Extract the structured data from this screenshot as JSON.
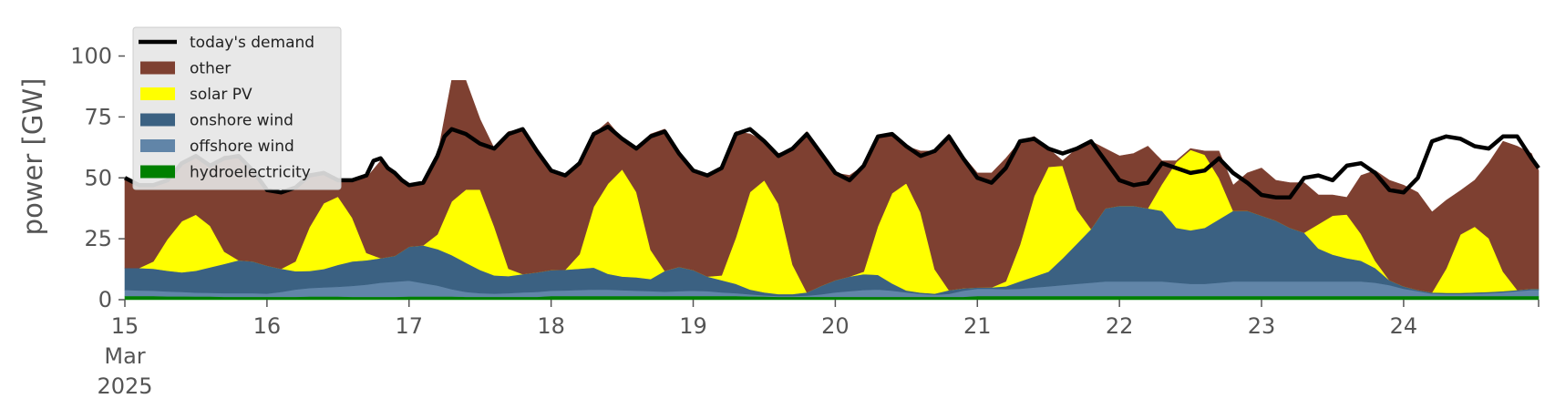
{
  "chart_data": {
    "type": "area",
    "title": "",
    "ylabel": "power [GW]",
    "xlabel": "",
    "ylim": [
      0,
      120
    ],
    "yticks": [
      0,
      25,
      50,
      75,
      100
    ],
    "xlim": [
      15,
      24.95
    ],
    "xticks": [
      {
        "value": 15,
        "lines": [
          "15",
          "Mar",
          "2025"
        ]
      },
      {
        "value": 16,
        "lines": [
          "16"
        ]
      },
      {
        "value": 17,
        "lines": [
          "17"
        ]
      },
      {
        "value": 18,
        "lines": [
          "18"
        ]
      },
      {
        "value": 19,
        "lines": [
          "19"
        ]
      },
      {
        "value": 20,
        "lines": [
          "20"
        ]
      },
      {
        "value": 21,
        "lines": [
          "21"
        ]
      },
      {
        "value": 22,
        "lines": [
          "22"
        ]
      },
      {
        "value": 23,
        "lines": [
          "23"
        ]
      },
      {
        "value": 24,
        "lines": [
          "24"
        ]
      }
    ],
    "grid": false,
    "legend_position": "top-left",
    "colors": {
      "hydro": "#008000",
      "offshore": "#6185a8",
      "onshore": "#3b6182",
      "solar": "#ffff00",
      "other": "#7e4031",
      "demand": "#000000",
      "legend_bg": "#e6e6e6"
    },
    "legend": [
      {
        "key": "demand",
        "label": "today's demand",
        "kind": "line"
      },
      {
        "key": "other",
        "label": "other",
        "kind": "patch"
      },
      {
        "key": "solar",
        "label": "solar PV",
        "kind": "patch"
      },
      {
        "key": "onshore",
        "label": "onshore wind",
        "kind": "patch"
      },
      {
        "key": "offshore",
        "label": "offshore wind",
        "kind": "patch"
      },
      {
        "key": "hydro",
        "label": "hydroelectricity",
        "kind": "patch"
      }
    ],
    "demand": {
      "x": [
        15.0,
        15.1,
        15.2,
        15.3,
        15.4,
        15.5,
        15.6,
        15.7,
        15.8,
        15.9,
        16.0,
        16.1,
        16.2,
        16.3,
        16.4,
        16.5,
        16.6,
        16.7,
        16.75,
        16.8,
        16.85,
        16.9,
        16.95,
        17.0,
        17.1,
        17.2,
        17.25,
        17.3,
        17.4,
        17.5,
        17.6,
        17.7,
        17.8,
        17.9,
        18.0,
        18.1,
        18.2,
        18.3,
        18.4,
        18.5,
        18.6,
        18.7,
        18.8,
        18.9,
        19.0,
        19.1,
        19.2,
        19.3,
        19.4,
        19.5,
        19.6,
        19.7,
        19.8,
        19.9,
        20.0,
        20.1,
        20.2,
        20.3,
        20.4,
        20.5,
        20.6,
        20.7,
        20.8,
        20.9,
        21.0,
        21.1,
        21.2,
        21.3,
        21.4,
        21.5,
        21.6,
        21.7,
        21.8,
        21.9,
        22.0,
        22.1,
        22.2,
        22.3,
        22.4,
        22.5,
        22.6,
        22.7,
        22.8,
        22.9,
        23.0,
        23.1,
        23.2,
        23.3,
        23.4,
        23.5,
        23.6,
        23.7,
        23.8,
        23.9,
        24.0,
        24.1,
        24.2,
        24.3,
        24.4,
        24.5,
        24.6,
        24.7,
        24.8,
        24.9,
        24.95
      ],
      "values": [
        50,
        47,
        47,
        49,
        56,
        59,
        55,
        58,
        59,
        53,
        45,
        44,
        46,
        51,
        52,
        49,
        49,
        51,
        57,
        58,
        54,
        52,
        49,
        47,
        48,
        59,
        67,
        70,
        68,
        64,
        62,
        68,
        70,
        61,
        53,
        51,
        56,
        68,
        71,
        66,
        62,
        67,
        69,
        60,
        53,
        51,
        54,
        68,
        70,
        65,
        59,
        62,
        68,
        60,
        52,
        49,
        55,
        67,
        68,
        63,
        59,
        61,
        67,
        58,
        50,
        48,
        54,
        65,
        66,
        62,
        60,
        62,
        65,
        57,
        49,
        47,
        48,
        56,
        54,
        52,
        53,
        58,
        52,
        48,
        43,
        42,
        42,
        50,
        51,
        49,
        55,
        56,
        52,
        45,
        44,
        50,
        65,
        67,
        66,
        63,
        62,
        67,
        67,
        58,
        54
      ]
    },
    "stack": {
      "x": [
        15.0,
        15.1,
        15.2,
        15.3,
        15.4,
        15.5,
        15.6,
        15.7,
        15.8,
        15.9,
        16.0,
        16.1,
        16.2,
        16.3,
        16.4,
        16.5,
        16.6,
        16.7,
        16.8,
        16.9,
        17.0,
        17.1,
        17.2,
        17.3,
        17.4,
        17.5,
        17.6,
        17.7,
        17.8,
        17.9,
        18.0,
        18.1,
        18.2,
        18.3,
        18.4,
        18.5,
        18.6,
        18.7,
        18.8,
        18.9,
        19.0,
        19.1,
        19.2,
        19.3,
        19.4,
        19.5,
        19.6,
        19.7,
        19.8,
        19.9,
        20.0,
        20.1,
        20.2,
        20.3,
        20.4,
        20.5,
        20.6,
        20.7,
        20.8,
        20.9,
        21.0,
        21.1,
        21.2,
        21.3,
        21.4,
        21.5,
        21.6,
        21.7,
        21.8,
        21.9,
        22.0,
        22.1,
        22.2,
        22.3,
        22.4,
        22.5,
        22.6,
        22.7,
        22.8,
        22.9,
        23.0,
        23.1,
        23.2,
        23.3,
        23.4,
        23.5,
        23.6,
        23.7,
        23.8,
        23.9,
        24.0,
        24.1,
        24.2,
        24.3,
        24.4,
        24.5,
        24.6,
        24.7,
        24.8,
        24.9,
        24.95
      ],
      "hydro": [
        1.5,
        1.5,
        1.5,
        1.4,
        1.4,
        1.3,
        1.3,
        1.2,
        1.2,
        1.2,
        1.2,
        1.2,
        1.2,
        1.3,
        1.3,
        1.3,
        1.2,
        1.2,
        1.2,
        1.2,
        1.3,
        1.3,
        1.3,
        1.3,
        1.2,
        1.2,
        1.2,
        1.2,
        1.2,
        1.2,
        1.5,
        1.5,
        1.5,
        1.5,
        1.5,
        1.5,
        1.5,
        1.5,
        1.5,
        1.5,
        1.5,
        1.5,
        1.5,
        1.5,
        1.4,
        1.3,
        1.2,
        1.2,
        1.2,
        1.2,
        1.2,
        1.2,
        1.2,
        1.2,
        1.2,
        1.2,
        1.2,
        1.2,
        1.2,
        1.2,
        1.5,
        1.5,
        1.5,
        1.5,
        1.5,
        1.5,
        1.5,
        1.5,
        1.5,
        1.5,
        1.5,
        1.5,
        1.5,
        1.5,
        1.5,
        1.5,
        1.5,
        1.5,
        1.5,
        1.5,
        1.5,
        1.5,
        1.5,
        1.5,
        1.5,
        1.5,
        1.5,
        1.5,
        1.5,
        1.5,
        1.5,
        1.5,
        1.5,
        1.5,
        1.5,
        1.5,
        1.5,
        1.5,
        1.5,
        1.5,
        1.5
      ],
      "offshore": [
        2.5,
        2.3,
        2.2,
        2.0,
        1.8,
        1.6,
        1.5,
        1.5,
        1.5,
        1.5,
        1.3,
        2.0,
        3.0,
        3.5,
        3.8,
        4.0,
        4.5,
        5.0,
        5.8,
        6.2,
        6.5,
        5.5,
        4.5,
        3.0,
        2.0,
        1.5,
        1.3,
        1.5,
        1.8,
        2.0,
        2.2,
        2.3,
        2.5,
        2.7,
        2.6,
        2.4,
        2.2,
        2.0,
        1.8,
        2.0,
        2.2,
        2.0,
        1.5,
        1.2,
        0.8,
        0.5,
        0.3,
        0.3,
        0.5,
        1.0,
        1.8,
        2.3,
        2.8,
        3.0,
        2.5,
        1.8,
        1.2,
        0.8,
        1.2,
        2.5,
        3.0,
        3.0,
        2.8,
        3.0,
        3.5,
        4.0,
        4.5,
        5.0,
        5.5,
        6.0,
        6.0,
        6.0,
        6.0,
        6.0,
        5.5,
        5.0,
        5.0,
        5.5,
        6.0,
        6.0,
        6.0,
        6.0,
        6.0,
        6.0,
        6.0,
        6.0,
        6.0,
        6.0,
        5.5,
        4.5,
        3.0,
        2.0,
        1.0,
        0.8,
        0.8,
        1.0,
        1.2,
        1.5,
        2.0,
        2.5,
        2.5
      ],
      "onshore": [
        9.0,
        9.2,
        9.0,
        8.5,
        8.0,
        9.0,
        10.5,
        12.0,
        13.5,
        13.0,
        11.5,
        9.5,
        7.5,
        7.0,
        7.5,
        9.0,
        10.0,
        10.0,
        10.0,
        10.6,
        14.0,
        15.5,
        15.0,
        14.0,
        12.0,
        9.5,
        7.5,
        7.0,
        7.5,
        8.0,
        8.5,
        8.5,
        8.7,
        9.0,
        6.5,
        5.6,
        5.5,
        5.0,
        8.5,
        10.0,
        8.5,
        6.0,
        5.0,
        3.8,
        2.0,
        1.2,
        0.8,
        0.8,
        1.3,
        3.5,
        5.0,
        6.0,
        6.5,
        6.0,
        3.0,
        0.8,
        0.5,
        0.5,
        1.5,
        1.0,
        0.5,
        0.6,
        1.2,
        3.0,
        4.5,
        6.0,
        11.0,
        16.5,
        22.0,
        30.0,
        31.0,
        31.0,
        30.0,
        29.0,
        22.5,
        22.0,
        23.0,
        26.0,
        29.0,
        29.0,
        27.0,
        25.0,
        22.0,
        20.0,
        13.5,
        11.0,
        9.5,
        8.5,
        6.0,
        2.0,
        1.0,
        0.5,
        0.5,
        0.5,
        0.5,
        0.5,
        0.5,
        0.5,
        0.5,
        0.5,
        0.5
      ],
      "solar": [
        0.0,
        0.0,
        3.0,
        13.0,
        21.0,
        23.0,
        17.0,
        5.0,
        0.0,
        0.0,
        0.0,
        0.0,
        4.0,
        18.0,
        27.0,
        28.0,
        18.0,
        3.0,
        0.0,
        0.0,
        0.0,
        0.0,
        6.0,
        22.0,
        30.0,
        33.0,
        20.0,
        3.0,
        0.0,
        0.0,
        0.0,
        0.0,
        6.0,
        25.0,
        37.0,
        44.0,
        35.0,
        12.0,
        0.0,
        0.0,
        0.0,
        0.0,
        2.0,
        19.0,
        40.0,
        46.0,
        37.0,
        12.0,
        0.0,
        0.0,
        0.0,
        0.0,
        1.0,
        20.0,
        37.0,
        44.0,
        33.0,
        10.0,
        0.0,
        0.0,
        0.0,
        0.0,
        2.0,
        15.0,
        33.0,
        43.0,
        38.0,
        14.0,
        0.0,
        0.0,
        0.0,
        0.0,
        0.0,
        11.0,
        27.0,
        33.0,
        30.0,
        17.0,
        0.0,
        0.0,
        0.0,
        0.0,
        0.0,
        0.0,
        10.0,
        16.0,
        18.0,
        11.0,
        3.0,
        0.0,
        0.0,
        0.0,
        0.0,
        10.0,
        24.0,
        27.0,
        22.0,
        8.0,
        0.0,
        0.0,
        0.0
      ],
      "other": [
        37.0,
        34.0,
        31.3,
        24.1,
        23.8,
        24.1,
        24.7,
        39.3,
        42.8,
        37.3,
        31.0,
        31.3,
        30.3,
        21.2,
        12.4,
        6.7,
        15.3,
        30.8,
        40.0,
        34.0,
        25.2,
        25.7,
        32.2,
        49.7,
        44.8,
        28.8,
        32.0,
        56.3,
        59.5,
        49.8,
        40.8,
        38.7,
        37.3,
        29.8,
        25.4,
        12.5,
        17.8,
        47.5,
        58.2,
        46.5,
        40.8,
        41.5,
        44.0,
        43.5,
        23.8,
        16.0,
        20.7,
        47.7,
        66.0,
        54.3,
        44.0,
        41.5,
        43.5,
        36.8,
        24.3,
        15.2,
        25.1,
        48.5,
        64.1,
        54.3,
        47.0,
        46.9,
        50.5,
        42.5,
        24.5,
        7.5,
        2.0,
        25.0,
        36.0,
        24.5,
        20.5,
        21.5,
        25.5,
        9.5,
        0.5,
        0.5,
        1.5,
        11.0,
        10.5,
        15.5,
        19.5,
        16.5,
        18.5,
        20.5,
        12.0,
        8.5,
        7.0,
        24.0,
        37.0,
        41.0,
        41.5,
        40.0,
        33.0,
        28.0,
        18.0,
        19.0,
        31.0,
        53.5,
        59.0,
        55.5,
        48.5
      ]
    }
  }
}
